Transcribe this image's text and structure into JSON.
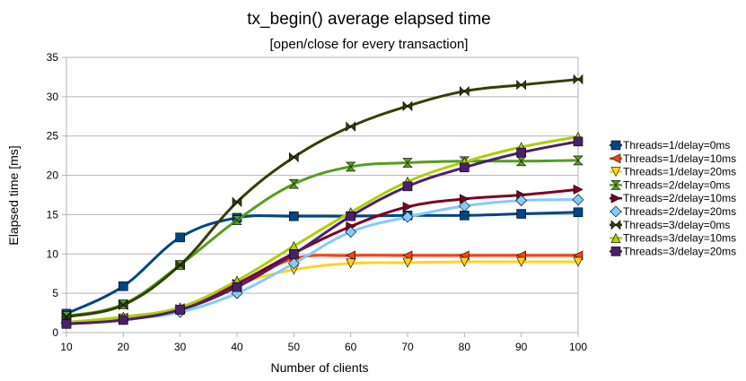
{
  "chart_data": {
    "type": "line",
    "title": "tx_begin() average elapsed time",
    "subtitle": "[open/close for every transaction]",
    "xlabel": "Number of clients",
    "ylabel": "Elapsed time [ms]",
    "x": [
      10,
      20,
      30,
      40,
      50,
      60,
      70,
      80,
      90,
      100
    ],
    "xlim": [
      10,
      100
    ],
    "ylim": [
      0,
      35
    ],
    "yticks": [
      0,
      5,
      10,
      15,
      20,
      25,
      30,
      35
    ],
    "grid": "horizontal",
    "legend_position": "right",
    "series": [
      {
        "name": "Threads=1/delay=0ms",
        "color": "#004586",
        "marker": "square",
        "values": [
          2.4,
          5.9,
          12.1,
          14.6,
          14.8,
          14.8,
          14.9,
          14.9,
          15.1,
          15.3
        ]
      },
      {
        "name": "Threads=1/delay=10ms",
        "color": "#ff420e",
        "marker": "triangle-left",
        "values": [
          1.3,
          1.9,
          3.1,
          6.0,
          9.4,
          9.8,
          9.8,
          9.8,
          9.8,
          9.8
        ]
      },
      {
        "name": "Threads=1/delay=20ms",
        "color": "#ffd320",
        "marker": "triangle-down",
        "values": [
          1.3,
          1.8,
          2.7,
          6.1,
          8.0,
          8.8,
          8.9,
          9.0,
          9.0,
          9.0
        ]
      },
      {
        "name": "Threads=2/delay=0ms",
        "color": "#579d1c",
        "marker": "hourglass",
        "values": [
          2.1,
          3.6,
          8.6,
          14.3,
          18.9,
          21.1,
          21.6,
          21.8,
          21.8,
          21.9
        ]
      },
      {
        "name": "Threads=2/delay=10ms",
        "color": "#7e0021",
        "marker": "triangle-right",
        "values": [
          1.3,
          1.7,
          3.0,
          6.2,
          10.1,
          13.5,
          16.0,
          17.0,
          17.5,
          18.2
        ]
      },
      {
        "name": "Threads=2/delay=20ms",
        "color": "#83caff",
        "marker": "diamond",
        "values": [
          1.2,
          1.7,
          2.6,
          5.0,
          8.8,
          12.8,
          14.7,
          16.1,
          16.8,
          16.9
        ]
      },
      {
        "name": "Threads=3/delay=0ms",
        "color": "#314004",
        "marker": "bowtie",
        "values": [
          2.0,
          3.5,
          8.6,
          16.6,
          22.3,
          26.2,
          28.8,
          30.7,
          31.5,
          32.2
        ]
      },
      {
        "name": "Threads=3/delay=10ms",
        "color": "#aecf00",
        "marker": "triangle-up",
        "values": [
          1.3,
          2.0,
          3.2,
          6.6,
          11.0,
          15.3,
          19.2,
          21.7,
          23.6,
          24.9
        ]
      },
      {
        "name": "Threads=3/delay=20ms",
        "color": "#4b1f6f",
        "marker": "square",
        "values": [
          1.1,
          1.6,
          2.9,
          5.8,
          10.0,
          14.8,
          18.6,
          21.0,
          22.9,
          24.3
        ]
      }
    ]
  }
}
